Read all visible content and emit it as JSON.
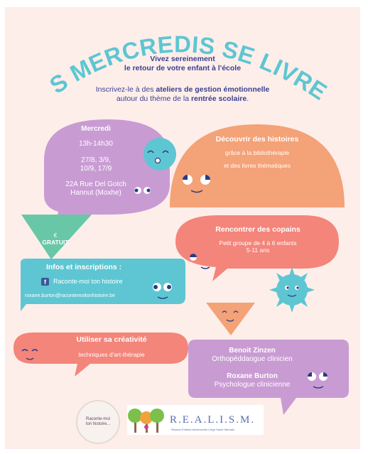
{
  "title": "LES MERCREDIS SE LIVRENT",
  "intro": {
    "line1": "Vivez sereinement",
    "line2": "le retour de votre enfant à l'école",
    "line3_pre": "Inscrivez-le à des ",
    "line3_strong": "ateliers de gestion émotionnelle",
    "line4_pre": "autour du thème de la ",
    "line4_strong": "rentrée scolaire",
    "line4_post": "."
  },
  "schedule": {
    "day": "Mercredi",
    "time": "13h-14h30",
    "dates_line1": "27/8, 3/9,",
    "dates_line2": "10/9, 17/9",
    "address_line1": "22A Rue Del Gotch",
    "address_line2": "Hannut (Moxhe)"
  },
  "discover": {
    "title": "Découvrir des histoires",
    "line1": "grâce à la bibliothérapie",
    "line2": "et des livres thématiques"
  },
  "free_badge": {
    "symbol": "€",
    "label": "GRATUIT"
  },
  "friends": {
    "title": "Rencontrer des copains",
    "line1": "Petit groupe de 4 à 6 enfants",
    "line2": "5-11 ans"
  },
  "contact": {
    "title": "Infos et inscriptions :",
    "facebook_label": "Raconte-moi ton histoire",
    "email": "roxane.burton@racontemoitonhistoire.be"
  },
  "creativity": {
    "title": "Utiliser sa créativité",
    "line1": "techniques d'art-thérapie"
  },
  "team": {
    "name1": "Benoit Zinzen",
    "role1": "Orthopéddaogue clinicien",
    "name2": "Roxane Burton",
    "role2": "Psychologue clinicienne"
  },
  "logos": {
    "raconte_line1": "Raconte-moi",
    "raconte_line2": "ton histoire...",
    "realism": "R.E.A.L.I.S.M.",
    "realism_sub": "Réseau Enfants Adolescents Liège Santé Mentale"
  },
  "colors": {
    "background": "#fdeeea",
    "turquoise": "#5dc6d2",
    "purple": "#c99bd3",
    "orange": "#f4a277",
    "coral": "#f3857a",
    "navy": "#3c3f8f"
  }
}
